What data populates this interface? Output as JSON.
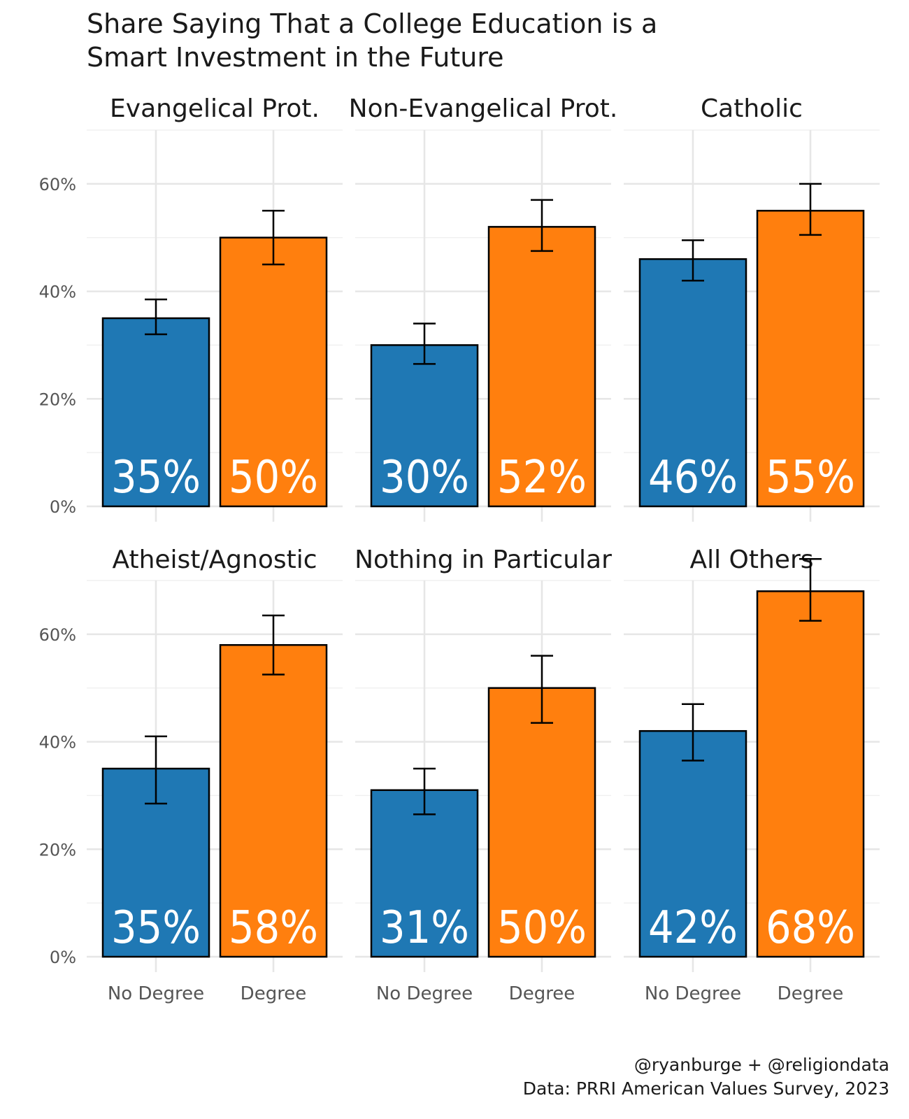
{
  "title_lines": [
    "Share Saying That a College Education is a",
    "Smart Investment in the Future"
  ],
  "caption_lines": [
    "@ryanburge + @religiondata",
    "Data: PRRI American Values Survey, 2023"
  ],
  "colors": {
    "no_degree": "#1f78b4",
    "degree": "#ff7f0e",
    "grid": "#e6e6e6",
    "outline": "#000000",
    "axis_text": "#555555",
    "bar_label": "#ffffff"
  },
  "chart_data": {
    "type": "bar",
    "title": "Share Saying That a College Education is a Smart Investment in the Future",
    "xlabel": "",
    "ylabel": "",
    "ylim": [
      0,
      70
    ],
    "y_ticks": [
      0,
      20,
      40,
      60
    ],
    "y_tick_labels": [
      "0%",
      "20%",
      "40%",
      "60%"
    ],
    "categories": [
      "No Degree",
      "Degree"
    ],
    "panels": [
      {
        "name": "Evangelical Prot.",
        "values": [
          35,
          50
        ],
        "labels": [
          "35%",
          "50%"
        ],
        "ci_low": [
          32,
          45
        ],
        "ci_high": [
          38.5,
          55
        ]
      },
      {
        "name": "Non-Evangelical Prot.",
        "values": [
          30,
          52
        ],
        "labels": [
          "30%",
          "52%"
        ],
        "ci_low": [
          26.5,
          47.5
        ],
        "ci_high": [
          34,
          57
        ]
      },
      {
        "name": "Catholic",
        "values": [
          46,
          55
        ],
        "labels": [
          "46%",
          "55%"
        ],
        "ci_low": [
          42,
          50.5
        ],
        "ci_high": [
          49.5,
          60
        ]
      },
      {
        "name": "Atheist/Agnostic",
        "values": [
          35,
          58
        ],
        "labels": [
          "35%",
          "58%"
        ],
        "ci_low": [
          28.5,
          52.5
        ],
        "ci_high": [
          41,
          63.5
        ]
      },
      {
        "name": "Nothing in Particular",
        "values": [
          31,
          50
        ],
        "labels": [
          "31%",
          "50%"
        ],
        "ci_low": [
          26.5,
          43.5
        ],
        "ci_high": [
          35,
          56
        ]
      },
      {
        "name": "All Others",
        "values": [
          42,
          68
        ],
        "labels": [
          "42%",
          "68%"
        ],
        "ci_low": [
          36.5,
          62.5
        ],
        "ci_high": [
          47,
          74
        ]
      }
    ]
  }
}
